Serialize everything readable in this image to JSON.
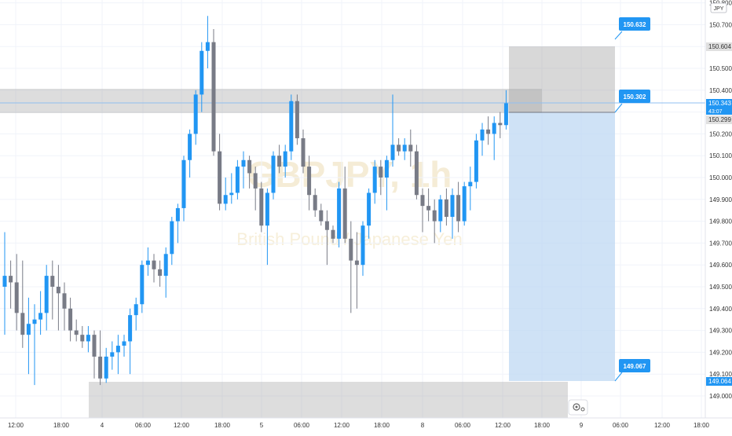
{
  "symbol_watermark": "GBPJPY, 1h",
  "description_watermark": "British Pound / Japanese Yen",
  "currency_badge": "JPY",
  "colors": {
    "up": "#2196f3",
    "down": "#787b86",
    "zone_fill": "#9e9e9e",
    "target_zone": "#bbd5f2",
    "tag_blue": "#2196f3",
    "last_price_bg": "#2196f3",
    "price_line": "#90bff0"
  },
  "price_axis": {
    "labels": [
      "150.800",
      "150.700",
      "150.604",
      "150.500",
      "150.400",
      "150.343",
      "150.299",
      "150.200",
      "150.100",
      "150.000",
      "149.900",
      "149.800",
      "149.700",
      "149.600",
      "149.500",
      "149.400",
      "149.300",
      "149.200",
      "149.100",
      "149.064",
      "149.000"
    ],
    "last_price": "150.343",
    "countdown": "43:07",
    "marker_299": "150.299",
    "marker_604": "150.604",
    "marker_064": "149.064"
  },
  "time_axis": [
    "12:00",
    "18:00",
    "4",
    "06:00",
    "12:00",
    "18:00",
    "5",
    "06:00",
    "12:00",
    "18:00",
    "8",
    "06:00",
    "12:00",
    "18:00",
    "9",
    "06:00",
    "12:00",
    "18:00"
  ],
  "tags": {
    "upper": "150.632",
    "middle": "150.302",
    "lower": "149.067"
  },
  "chart_data": {
    "type": "candlestick",
    "timeframe": "1h",
    "symbol": "GBPJPY",
    "y_range": [
      148.96,
      150.83
    ],
    "candles": [
      [
        149.5,
        149.75,
        149.28,
        149.55
      ],
      [
        149.55,
        149.62,
        149.4,
        149.52
      ],
      [
        149.52,
        149.65,
        149.3,
        149.38
      ],
      [
        149.38,
        149.62,
        149.22,
        149.28
      ],
      [
        149.28,
        149.45,
        149.1,
        149.33
      ],
      [
        149.33,
        149.42,
        149.05,
        149.35
      ],
      [
        149.35,
        149.48,
        149.28,
        149.38
      ],
      [
        149.38,
        149.6,
        149.3,
        149.55
      ],
      [
        149.55,
        149.62,
        149.35,
        149.5
      ],
      [
        149.5,
        149.6,
        149.3,
        149.47
      ],
      [
        149.47,
        149.52,
        149.3,
        149.4
      ],
      [
        149.4,
        149.45,
        149.25,
        149.3
      ],
      [
        149.3,
        149.35,
        149.25,
        149.28
      ],
      [
        149.28,
        149.32,
        149.22,
        149.25
      ],
      [
        149.25,
        149.32,
        149.2,
        149.28
      ],
      [
        149.28,
        149.3,
        149.08,
        149.18
      ],
      [
        149.18,
        149.3,
        149.05,
        149.08
      ],
      [
        149.08,
        149.22,
        149.06,
        149.18
      ],
      [
        149.18,
        149.25,
        149.12,
        149.2
      ],
      [
        149.2,
        149.28,
        149.1,
        149.23
      ],
      [
        149.23,
        149.28,
        149.18,
        149.25
      ],
      [
        149.25,
        149.4,
        149.1,
        149.37
      ],
      [
        149.37,
        149.45,
        149.3,
        149.42
      ],
      [
        149.42,
        149.62,
        149.38,
        149.6
      ],
      [
        149.6,
        149.68,
        149.55,
        149.62
      ],
      [
        149.62,
        149.65,
        149.52,
        149.58
      ],
      [
        149.58,
        149.62,
        149.5,
        149.55
      ],
      [
        149.55,
        149.68,
        149.45,
        149.65
      ],
      [
        149.65,
        149.82,
        149.6,
        149.8
      ],
      [
        149.8,
        149.88,
        149.7,
        149.86
      ],
      [
        149.86,
        150.1,
        149.8,
        150.08
      ],
      [
        150.08,
        150.22,
        150.0,
        150.2
      ],
      [
        150.2,
        150.4,
        150.15,
        150.38
      ],
      [
        150.38,
        150.62,
        150.3,
        150.58
      ],
      [
        150.58,
        150.74,
        150.5,
        150.62
      ],
      [
        150.62,
        150.68,
        150.1,
        150.12
      ],
      [
        150.12,
        150.2,
        149.85,
        149.88
      ],
      [
        149.88,
        150.0,
        149.85,
        149.92
      ],
      [
        149.92,
        150.02,
        149.88,
        149.93
      ],
      [
        149.93,
        150.08,
        149.9,
        150.05
      ],
      [
        150.05,
        150.12,
        149.95,
        150.08
      ],
      [
        150.08,
        150.1,
        149.95,
        150.02
      ],
      [
        150.02,
        150.05,
        149.85,
        149.95
      ],
      [
        149.95,
        149.98,
        149.75,
        149.78
      ],
      [
        149.78,
        149.95,
        149.6,
        149.93
      ],
      [
        149.93,
        150.12,
        149.9,
        150.1
      ],
      [
        150.1,
        150.15,
        150.02,
        150.05
      ],
      [
        150.05,
        150.15,
        150.0,
        150.12
      ],
      [
        150.12,
        150.38,
        150.08,
        150.35
      ],
      [
        150.35,
        150.38,
        150.15,
        150.18
      ],
      [
        150.18,
        150.22,
        150.02,
        150.05
      ],
      [
        150.05,
        150.1,
        149.85,
        149.92
      ],
      [
        149.92,
        149.95,
        149.82,
        149.85
      ],
      [
        149.85,
        149.88,
        149.78,
        149.8
      ],
      [
        149.8,
        149.85,
        149.6,
        149.76
      ],
      [
        149.76,
        149.78,
        149.7,
        149.72
      ],
      [
        149.72,
        149.98,
        149.68,
        149.95
      ],
      [
        149.95,
        150.05,
        149.7,
        149.72
      ],
      [
        149.72,
        149.8,
        149.38,
        149.62
      ],
      [
        149.62,
        149.75,
        149.4,
        149.6
      ],
      [
        149.6,
        149.8,
        149.55,
        149.78
      ],
      [
        149.78,
        149.95,
        149.72,
        149.93
      ],
      [
        149.93,
        150.08,
        149.88,
        150.05
      ],
      [
        150.05,
        150.08,
        149.92,
        150.0
      ],
      [
        150.0,
        150.1,
        149.85,
        150.08
      ],
      [
        150.08,
        150.38,
        150.05,
        150.15
      ],
      [
        150.15,
        150.18,
        150.1,
        150.12
      ],
      [
        150.12,
        150.18,
        150.08,
        150.15
      ],
      [
        150.15,
        150.22,
        150.05,
        150.12
      ],
      [
        150.12,
        150.15,
        149.9,
        149.92
      ],
      [
        149.92,
        149.95,
        149.75,
        149.87
      ],
      [
        149.87,
        149.95,
        149.8,
        149.85
      ],
      [
        149.85,
        149.9,
        149.7,
        149.8
      ],
      [
        149.8,
        149.92,
        149.75,
        149.9
      ],
      [
        149.9,
        149.95,
        149.78,
        149.82
      ],
      [
        149.82,
        149.95,
        149.72,
        149.92
      ],
      [
        149.92,
        149.98,
        149.75,
        149.8
      ],
      [
        149.8,
        149.98,
        149.78,
        149.96
      ],
      [
        149.96,
        150.05,
        149.85,
        149.98
      ],
      [
        149.98,
        150.2,
        149.95,
        150.17
      ],
      [
        150.17,
        150.25,
        150.1,
        150.22
      ],
      [
        150.22,
        150.28,
        150.15,
        150.2
      ],
      [
        150.2,
        150.28,
        150.08,
        150.25
      ],
      [
        150.25,
        150.3,
        150.18,
        150.24
      ],
      [
        150.24,
        150.4,
        150.22,
        150.34
      ]
    ],
    "zones": [
      {
        "from_price": 150.28,
        "to_price": 150.42,
        "label": "resistance zone"
      },
      {
        "from_price": 148.96,
        "to_price": 149.064,
        "label": "support zone"
      }
    ],
    "position": {
      "entry": 150.302,
      "stop": 150.632,
      "target": 149.067
    }
  }
}
